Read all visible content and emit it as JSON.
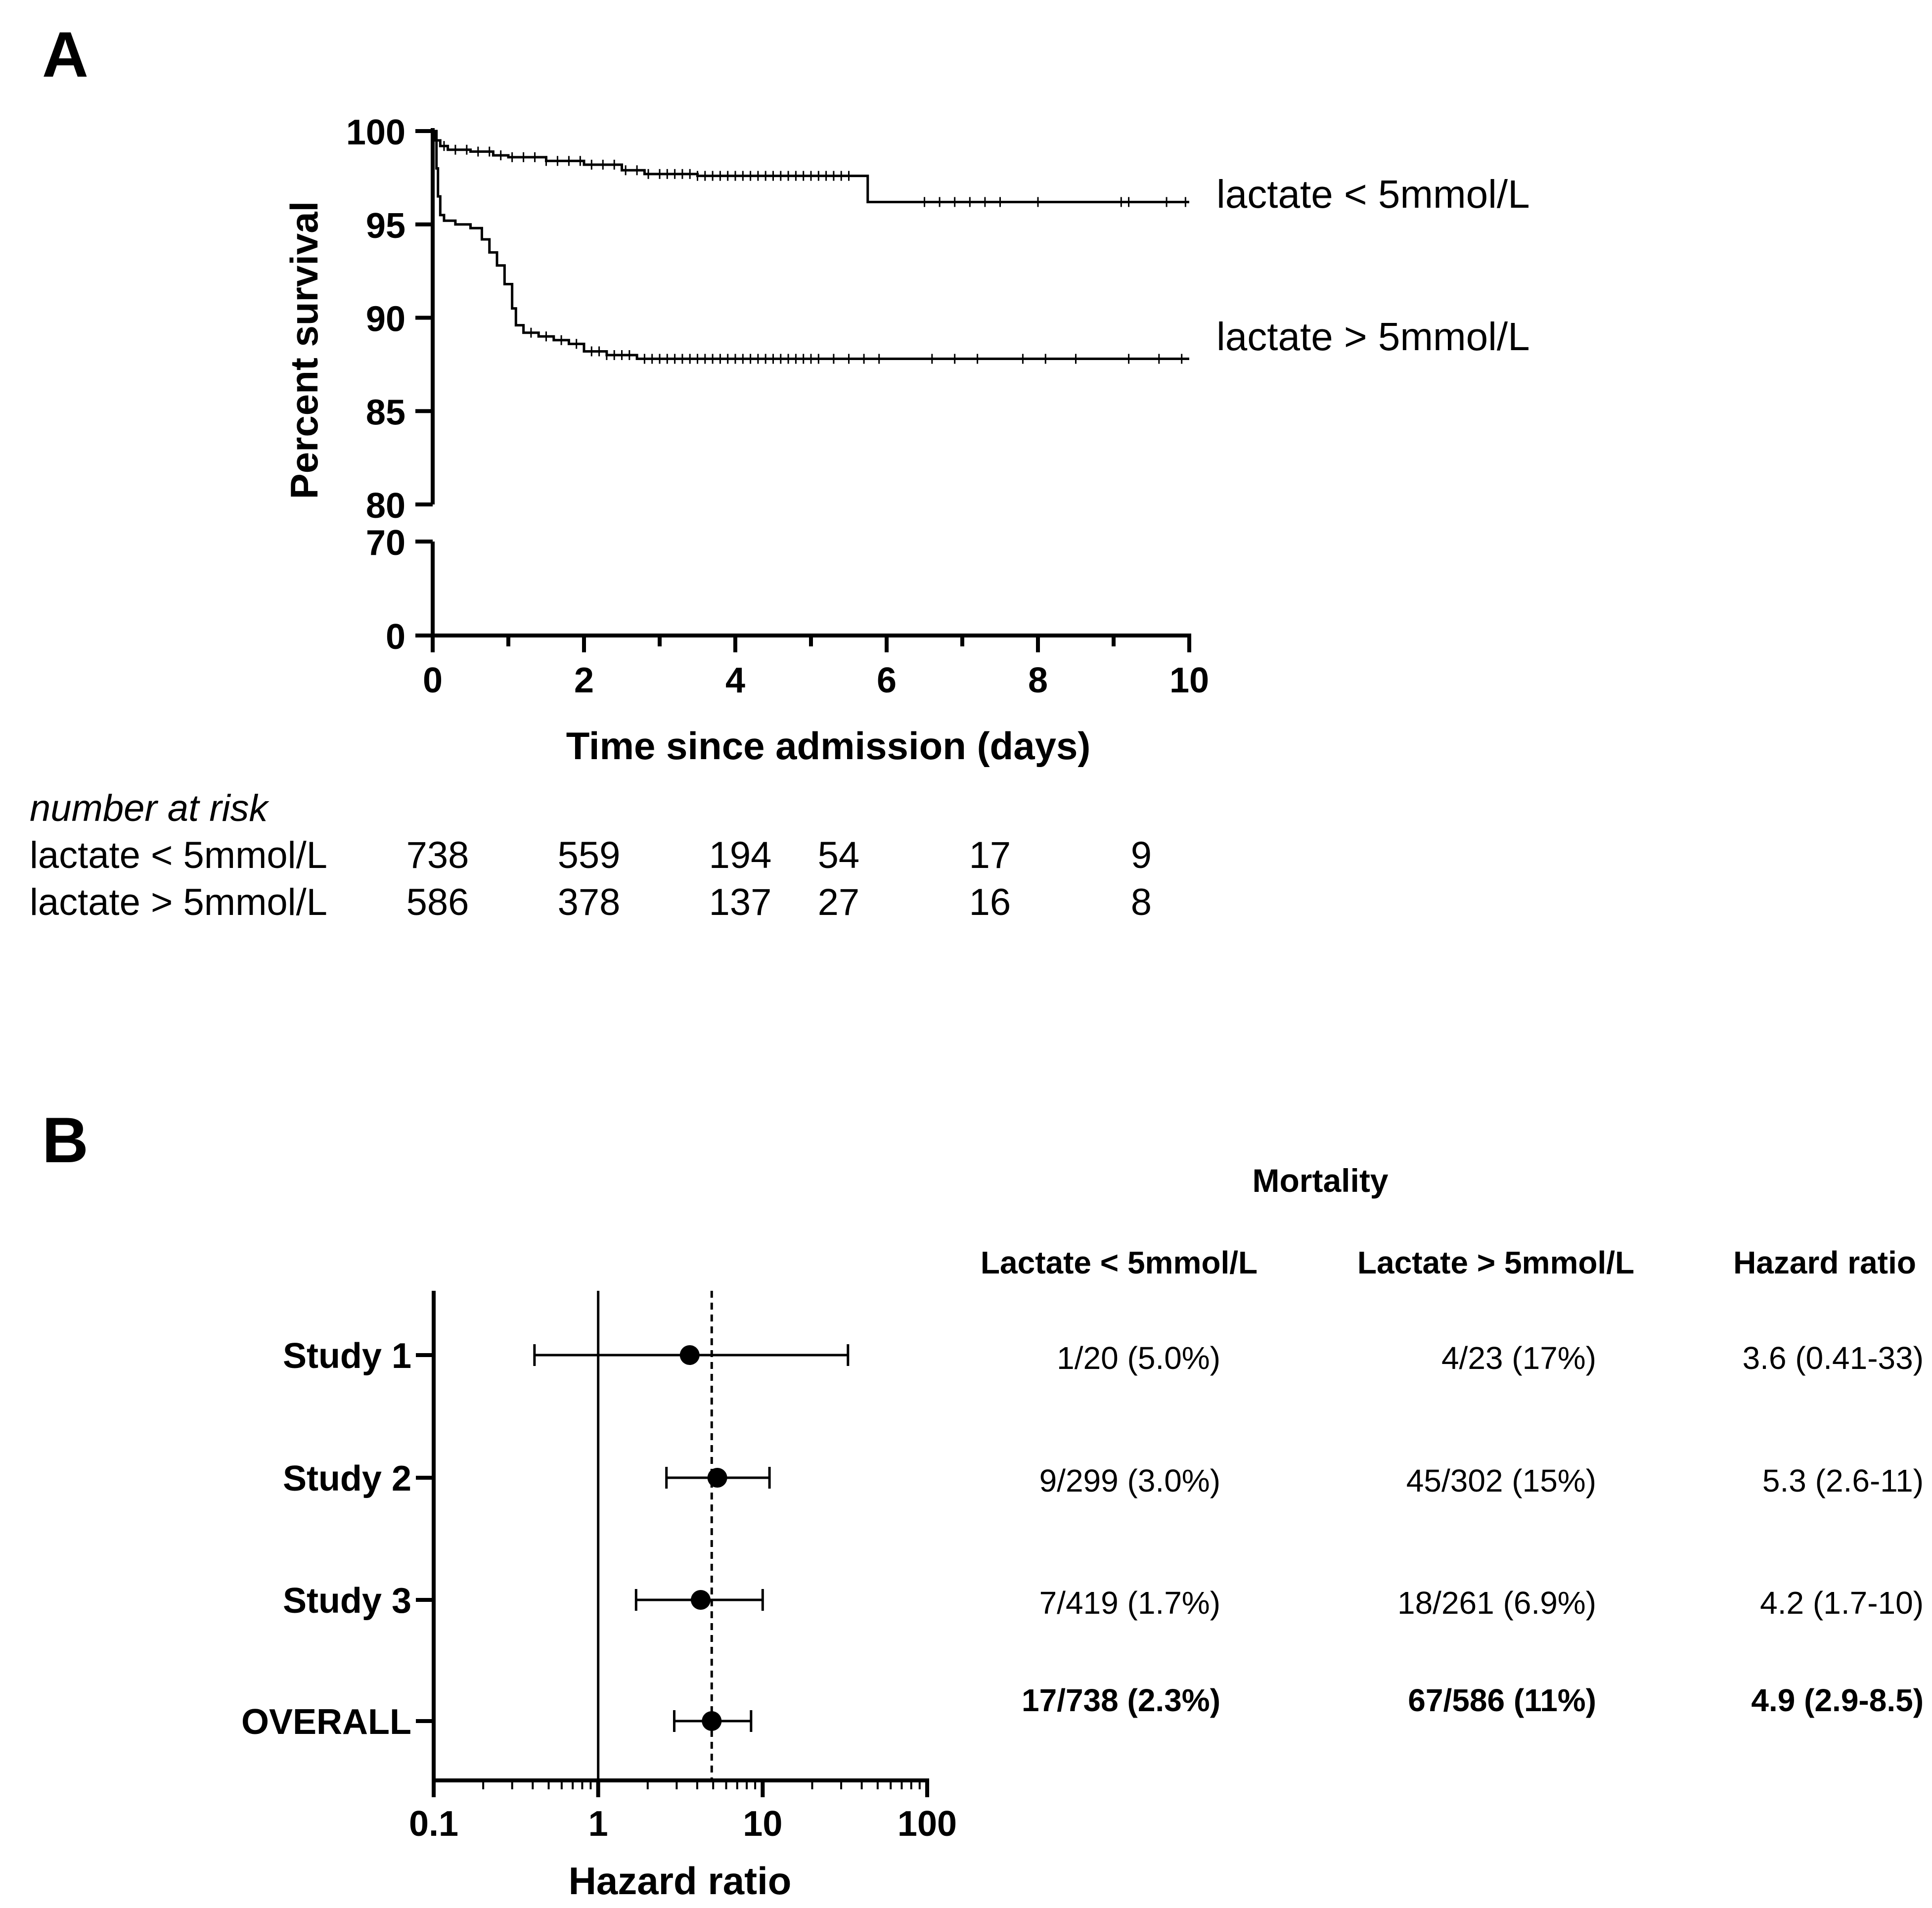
{
  "panels": {
    "a_label": "A",
    "b_label": "B"
  },
  "chart_data": [
    {
      "type": "line",
      "subtype": "kaplan-meier",
      "ylabel": "Percent survival",
      "xlabel": "Time since admission (days)",
      "xlim": [
        0,
        10
      ],
      "x_ticks": [
        "0",
        "2",
        "4",
        "6",
        "8",
        "10"
      ],
      "y_ticks_upper": [
        "100",
        "95",
        "90",
        "85",
        "80"
      ],
      "y_ticks_lower": [
        "70",
        "0"
      ],
      "ylim_upper": [
        80,
        100
      ],
      "ylim_lower": [
        0,
        70
      ],
      "series": [
        {
          "name": "lactate < 5mmol/L",
          "steps": [
            [
              0,
              100
            ],
            [
              0.05,
              99.5
            ],
            [
              0.1,
              99.2
            ],
            [
              0.2,
              99.0
            ],
            [
              0.5,
              98.9
            ],
            [
              0.8,
              98.7
            ],
            [
              1.0,
              98.6
            ],
            [
              1.5,
              98.4
            ],
            [
              2.0,
              98.2
            ],
            [
              2.5,
              97.9
            ],
            [
              2.8,
              97.7
            ],
            [
              3.5,
              97.6
            ],
            [
              5.7,
              97.6
            ],
            [
              5.75,
              96.2
            ],
            [
              10,
              96.2
            ]
          ],
          "censor_x": [
            0.15,
            0.3,
            0.45,
            0.6,
            0.75,
            0.9,
            1.05,
            1.2,
            1.35,
            1.5,
            1.65,
            1.8,
            1.95,
            2.1,
            2.25,
            2.4,
            2.55,
            2.7,
            2.85,
            3.0,
            3.1,
            3.2,
            3.3,
            3.4,
            3.5,
            3.6,
            3.7,
            3.8,
            3.9,
            4.0,
            4.1,
            4.2,
            4.3,
            4.4,
            4.5,
            4.6,
            4.7,
            4.8,
            4.9,
            5.0,
            5.1,
            5.2,
            5.3,
            5.4,
            5.5,
            6.5,
            6.7,
            6.9,
            7.1,
            7.3,
            7.5,
            8.0,
            9.1,
            9.2,
            9.7,
            9.95
          ]
        },
        {
          "name": "lactate > 5mmol/L",
          "steps": [
            [
              0,
              100
            ],
            [
              0.03,
              99.5
            ],
            [
              0.05,
              98.0
            ],
            [
              0.07,
              96.5
            ],
            [
              0.1,
              95.5
            ],
            [
              0.15,
              95.2
            ],
            [
              0.3,
              95.0
            ],
            [
              0.5,
              94.8
            ],
            [
              0.65,
              94.2
            ],
            [
              0.75,
              93.5
            ],
            [
              0.85,
              92.8
            ],
            [
              0.95,
              91.8
            ],
            [
              1.05,
              90.5
            ],
            [
              1.1,
              89.6
            ],
            [
              1.2,
              89.2
            ],
            [
              1.4,
              89.0
            ],
            [
              1.6,
              88.8
            ],
            [
              1.8,
              88.6
            ],
            [
              2.0,
              88.2
            ],
            [
              2.3,
              88.0
            ],
            [
              2.7,
              87.8
            ],
            [
              10,
              87.8
            ]
          ],
          "censor_x": [
            1.3,
            1.5,
            1.7,
            1.9,
            2.1,
            2.2,
            2.3,
            2.4,
            2.5,
            2.6,
            2.8,
            2.9,
            3.0,
            3.1,
            3.2,
            3.3,
            3.4,
            3.5,
            3.6,
            3.7,
            3.8,
            3.9,
            4.0,
            4.1,
            4.2,
            4.3,
            4.4,
            4.5,
            4.6,
            4.7,
            4.8,
            4.9,
            5.0,
            5.1,
            5.3,
            5.5,
            5.7,
            5.9,
            6.6,
            6.9,
            7.2,
            7.8,
            8.1,
            8.5,
            9.2,
            9.6,
            9.9
          ]
        }
      ],
      "risk_table": {
        "title": "number at risk",
        "columns_x_days": [
          0,
          2,
          4,
          5.3,
          7.3,
          9.3
        ],
        "rows": [
          {
            "label": "lactate < 5mmol/L",
            "values": [
              "738",
              "559",
              "194",
              "54",
              "17",
              "9"
            ]
          },
          {
            "label": "lactate > 5mmol/L",
            "values": [
              "586",
              "378",
              "137",
              "27",
              "16",
              "8"
            ]
          }
        ]
      }
    },
    {
      "type": "scatter",
      "subtype": "forest",
      "xlabel": "Hazard ratio",
      "xscale": "log",
      "xlim": [
        0.1,
        100
      ],
      "x_ticks": [
        "0.1",
        "1",
        "10",
        "100"
      ],
      "reference_line": 1,
      "pooled_line": 4.9,
      "header": "Mortality",
      "columns": [
        "Lactate < 5mmol/L",
        "Lactate > 5mmol/L",
        "Hazard ratio"
      ],
      "studies": [
        {
          "label": "Study 1",
          "hr": 3.6,
          "lo": 0.41,
          "hi": 33,
          "col1": "1/20 (5.0%)",
          "col2": "4/23 (17%)",
          "col3": "3.6 (0.41-33)",
          "bold": false
        },
        {
          "label": "Study 2",
          "hr": 5.3,
          "lo": 2.6,
          "hi": 11,
          "col1": "9/299 (3.0%)",
          "col2": "45/302 (15%)",
          "col3": "5.3 (2.6-11)",
          "bold": false
        },
        {
          "label": "Study 3",
          "hr": 4.2,
          "lo": 1.7,
          "hi": 10,
          "col1": "7/419 (1.7%)",
          "col2": "18/261 (6.9%)",
          "col3": "4.2 (1.7-10)",
          "bold": false
        },
        {
          "label": "OVERALL",
          "hr": 4.9,
          "lo": 2.9,
          "hi": 8.5,
          "col1": "17/738 (2.3%)",
          "col2": "67/586 (11%)",
          "col3": "4.9 (2.9-8.5)",
          "bold": true
        }
      ]
    }
  ]
}
